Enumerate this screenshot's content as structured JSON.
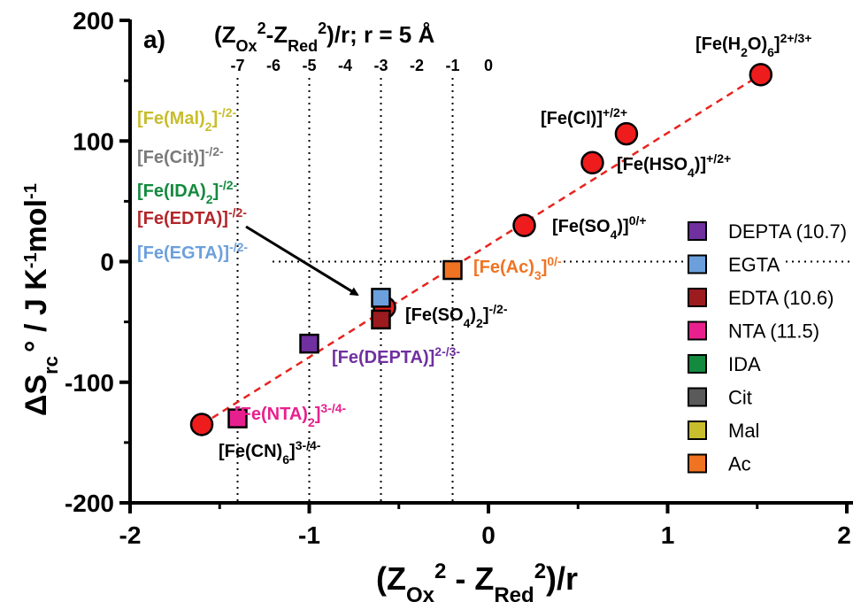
{
  "chart_data": {
    "type": "scatter",
    "panel_label": "a)",
    "xlabel": "(Z_Ox^2 - Z_Red^2)/r",
    "ylabel": "ΔS_rc^o / J K^-1 mol^-1",
    "xlim": [
      -2,
      2
    ],
    "ylim": [
      -200,
      200
    ],
    "x_ticks": [
      "-2",
      "-1",
      "0",
      "1",
      "2"
    ],
    "y_ticks": [
      "-200",
      "-100",
      "0",
      "100",
      "200"
    ],
    "top_axis": {
      "title": "(Z_Ox^2-Z_Red^2)/r; r = 5 Å",
      "ticks": [
        {
          "label": "-7",
          "x": -1.4
        },
        {
          "label": "-6",
          "x": -1.2
        },
        {
          "label": "-5",
          "x": -1.0
        },
        {
          "label": "-4",
          "x": -0.8
        },
        {
          "label": "-3",
          "x": -0.6
        },
        {
          "label": "-2",
          "x": -0.4
        },
        {
          "label": "-1",
          "x": -0.2
        },
        {
          "label": "0",
          "x": 0.0
        }
      ]
    },
    "vertical_reference_lines_x": [
      -1.4,
      -1.0,
      -0.6,
      -0.2
    ],
    "horizontal_reference_line_y": 0,
    "fit_line": {
      "color": "#e8231e",
      "x": [
        -1.6,
        1.52
      ],
      "y": [
        -135,
        155
      ]
    },
    "circles": [
      {
        "label": "[Fe(CN)6]3-/4-",
        "x": -1.6,
        "y": -135
      },
      {
        "label": "[Fe(SO4)2]-/2-",
        "x": -0.58,
        "y": -38
      },
      {
        "label": "[Fe(SO4)]0/+",
        "x": 0.2,
        "y": 30
      },
      {
        "label": "[Fe(HSO4)]+/2+",
        "x": 0.58,
        "y": 82
      },
      {
        "label": "[Fe(Cl)]+/2+",
        "x": 0.77,
        "y": 106
      },
      {
        "label": "[Fe(H2O)6]2+/3+",
        "x": 1.52,
        "y": 155
      }
    ],
    "squares": [
      {
        "series": "NTA (11.5)",
        "label": "[Fe(NTA)2]3-/4-",
        "x": -1.4,
        "y": -130,
        "color": "#e8208e"
      },
      {
        "series": "DEPTA (10.7)",
        "label": "[Fe(DEPTA)]2-/3-",
        "x": -1.0,
        "y": -68,
        "color": "#7030a0"
      },
      {
        "series": "EGTA",
        "x": -0.6,
        "y": -30,
        "color": "#6ca0dc"
      },
      {
        "series": "EDTA (10.6)",
        "x": -0.6,
        "y": -48,
        "color": "#9b1b1e"
      },
      {
        "series": "Ac",
        "label": "[Fe(Ac)3]0/-",
        "x": -0.2,
        "y": -7,
        "color": "#f07322"
      }
    ],
    "stacked_labels": [
      {
        "text": "[Fe(Mal)2]-/2-",
        "color": "#c8bd2c"
      },
      {
        "text": "[Fe(Cit)]-/2-",
        "color": "#7a7a7a"
      },
      {
        "text": "[Fe(IDA)2]-/2-",
        "color": "#138a3e"
      },
      {
        "text": "[Fe(EDTA)]-/2-",
        "color": "#b3262a"
      },
      {
        "text": "[Fe(EGTA)]-/2-",
        "color": "#6ca0dc"
      }
    ],
    "legend": {
      "placement": "right",
      "items": [
        {
          "label": "DEPTA (10.7)",
          "color": "#7030a0"
        },
        {
          "label": "EGTA",
          "color": "#6ca0dc"
        },
        {
          "label": "EDTA (10.6)",
          "color": "#9b1b1e"
        },
        {
          "label": "NTA (11.5)",
          "color": "#e8208e"
        },
        {
          "label": "IDA",
          "color": "#138a3e"
        },
        {
          "label": "Cit",
          "color": "#5a5a5a"
        },
        {
          "label": "Mal",
          "color": "#c8bd2c"
        },
        {
          "label": "Ac",
          "color": "#f07322"
        }
      ]
    }
  }
}
